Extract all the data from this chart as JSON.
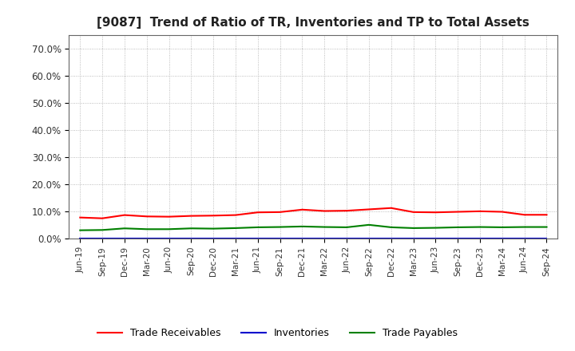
{
  "title": "[9087]  Trend of Ratio of TR, Inventories and TP to Total Assets",
  "x_labels": [
    "Jun-19",
    "Sep-19",
    "Dec-19",
    "Mar-20",
    "Jun-20",
    "Sep-20",
    "Dec-20",
    "Mar-21",
    "Jun-21",
    "Sep-21",
    "Dec-21",
    "Mar-22",
    "Jun-22",
    "Sep-22",
    "Dec-22",
    "Mar-23",
    "Jun-23",
    "Sep-23",
    "Dec-23",
    "Mar-24",
    "Jun-24",
    "Sep-24"
  ],
  "trade_receivables": [
    7.8,
    7.5,
    8.7,
    8.2,
    8.1,
    8.4,
    8.5,
    8.7,
    9.7,
    9.8,
    10.7,
    10.2,
    10.3,
    10.8,
    11.3,
    9.8,
    9.7,
    9.9,
    10.1,
    9.9,
    8.8,
    8.8
  ],
  "inventories": [
    0.2,
    0.2,
    0.2,
    0.2,
    0.2,
    0.2,
    0.2,
    0.2,
    0.2,
    0.2,
    0.2,
    0.2,
    0.2,
    0.2,
    0.2,
    0.2,
    0.2,
    0.2,
    0.2,
    0.2,
    0.2,
    0.2
  ],
  "trade_payables": [
    3.1,
    3.2,
    3.8,
    3.5,
    3.5,
    3.8,
    3.7,
    3.9,
    4.2,
    4.3,
    4.5,
    4.3,
    4.2,
    5.1,
    4.2,
    3.9,
    4.0,
    4.2,
    4.3,
    4.2,
    4.3,
    4.3
  ],
  "color_tr": "#ff0000",
  "color_inv": "#0000cc",
  "color_tp": "#008000",
  "ylim_min": 0,
  "ylim_max": 75,
  "yticks": [
    0,
    10,
    20,
    30,
    40,
    50,
    60,
    70
  ],
  "ytick_labels": [
    "0.0%",
    "10.0%",
    "20.0%",
    "30.0%",
    "40.0%",
    "50.0%",
    "60.0%",
    "70.0%"
  ],
  "background_color": "#ffffff",
  "plot_bg_color": "#ffffff",
  "legend_tr": "Trade Receivables",
  "legend_inv": "Inventories",
  "legend_tp": "Trade Payables",
  "grid_color": "#aaaaaa",
  "spine_color": "#666666"
}
